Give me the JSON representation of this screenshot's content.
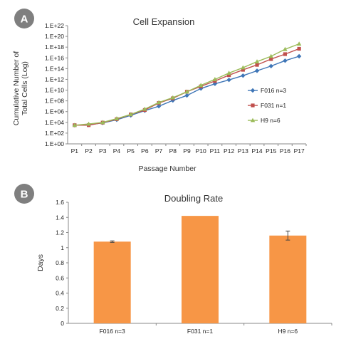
{
  "panels": {
    "a_badge": "A",
    "b_badge": "B"
  },
  "chart_data": [
    {
      "type": "line",
      "title": "Cell Expansion",
      "xlabel": "Passage Number",
      "ylabel": [
        "Cumulative Number of",
        "Total Cells (Log)"
      ],
      "y_scale": "log10",
      "categories": [
        "P1",
        "P2",
        "P3",
        "P4",
        "P5",
        "P6",
        "P7",
        "P8",
        "P9",
        "P10",
        "P11",
        "P12",
        "P13",
        "P14",
        "P15",
        "P16",
        "P17"
      ],
      "y_ticks": [
        "1.E+00",
        "1.E+02",
        "1.E+04",
        "1.E+06",
        "1.E+08",
        "1.E+10",
        "1.E+12",
        "1.E+14",
        "1.E+16",
        "1.E+18",
        "1.E+20",
        "1.E+22"
      ],
      "ylim": [
        1,
        1e+22
      ],
      "legend_position": "right",
      "grid": false,
      "series": [
        {
          "name": "F016 n=3",
          "color": "#3f76b7",
          "marker": "diamond",
          "values": [
            3000.0,
            3500.0,
            8000.0,
            30000.0,
            200000.0,
            1500000.0,
            10000000.0,
            120000000.0,
            1000000000.0,
            20000000000.0,
            150000000000.0,
            800000000000.0,
            5000000000000.0,
            40000000000000.0,
            300000000000000.0,
            3000000000000000.0,
            2e+16
          ]
        },
        {
          "name": "F031 n=1",
          "color": "#c0504d",
          "marker": "square",
          "values": [
            3000.0,
            3000.0,
            9000.0,
            40000.0,
            300000.0,
            2000000.0,
            40000000.0,
            300000000.0,
            5000000000.0,
            50000000000.0,
            500000000000.0,
            6000000000000.0,
            60000000000000.0,
            500000000000000.0,
            6000000000000000.0,
            5e+16,
            5e+17
          ]
        },
        {
          "name": "H9 n=6",
          "color": "#9bbb59",
          "marker": "triangle",
          "values": [
            3000.0,
            5000.0,
            10000.0,
            50000.0,
            300000.0,
            3000000.0,
            50000000.0,
            400000000.0,
            5000000000.0,
            80000000000.0,
            1000000000000.0,
            15000000000000.0,
            150000000000000.0,
            2000000000000000.0,
            2e+16,
            4e+17,
            4e+18
          ]
        }
      ]
    },
    {
      "type": "bar",
      "title": "Doubling Rate",
      "xlabel": "",
      "ylabel": "Days",
      "categories": [
        "F016 n=3",
        "F031 n=1",
        "H9 n=6"
      ],
      "values": [
        1.08,
        1.42,
        1.16
      ],
      "errors": [
        0.01,
        0,
        0.06
      ],
      "ylim": [
        0,
        1.6
      ],
      "y_ticks": [
        "0",
        "0.2",
        "0.4",
        "0.6",
        "0.8",
        "1",
        "1.2",
        "1.4",
        "1.6"
      ],
      "color": "#f79646",
      "grid": false
    }
  ]
}
